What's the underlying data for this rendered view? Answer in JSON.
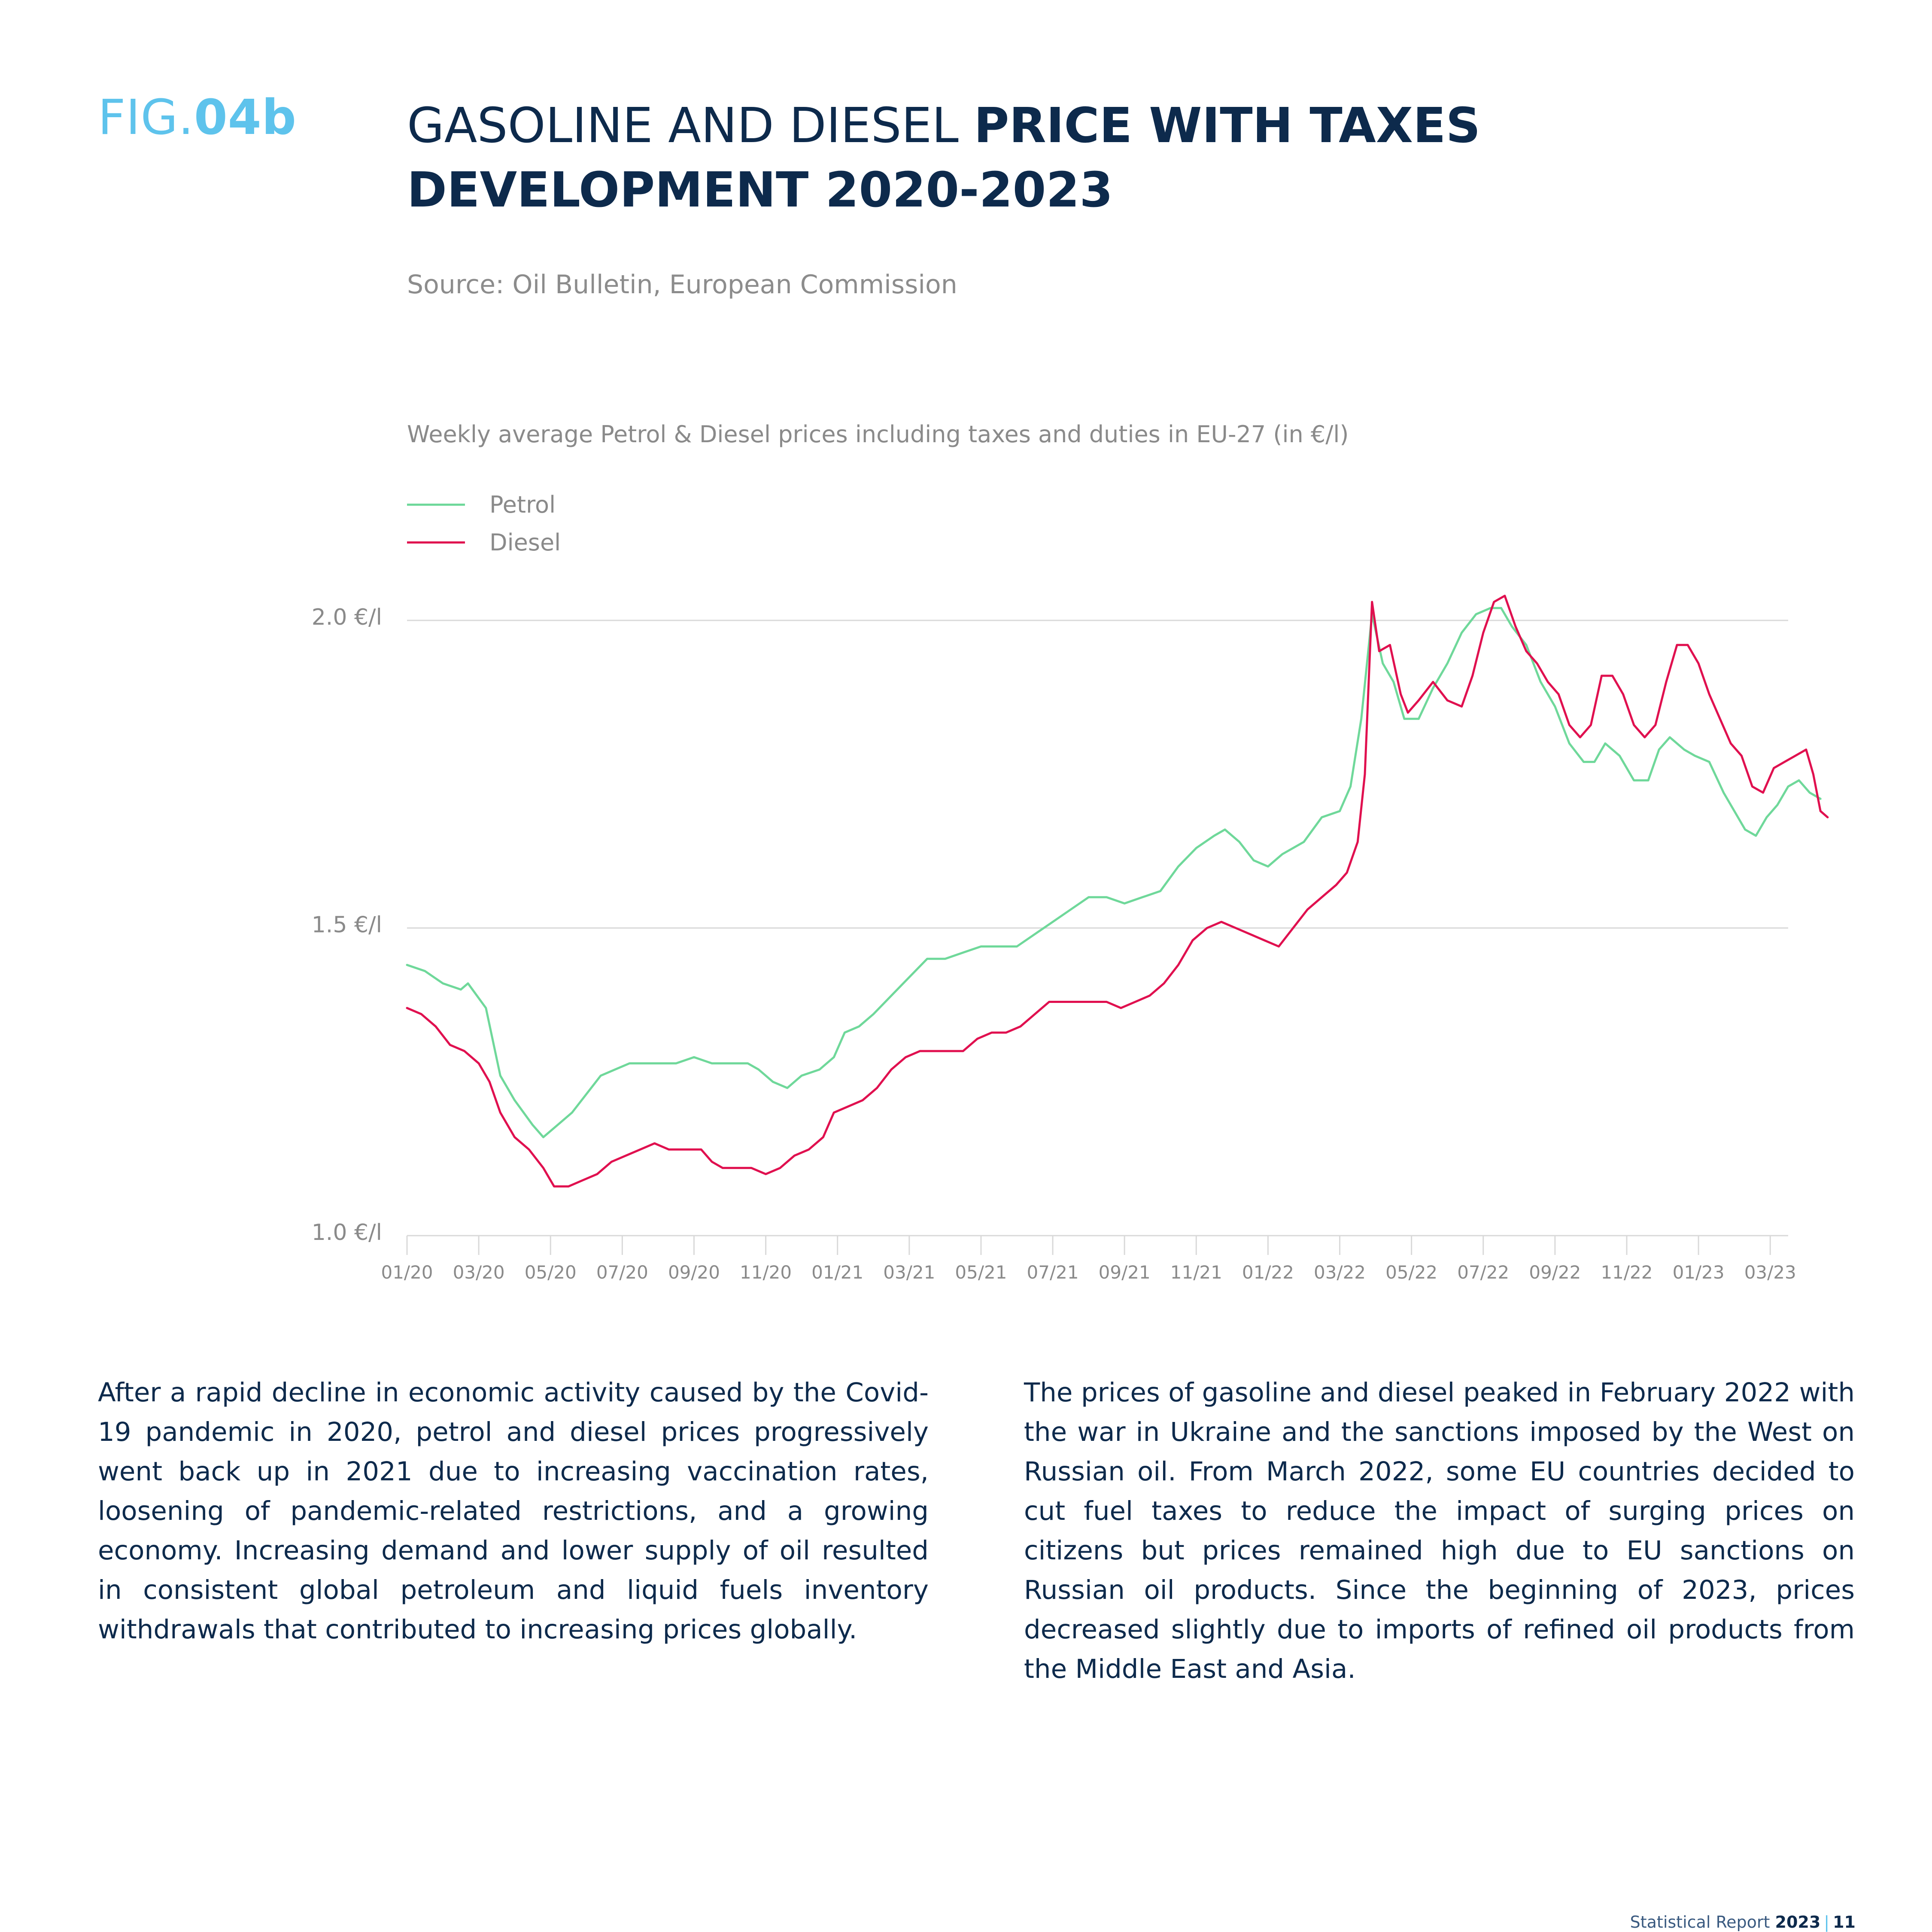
{
  "figure": {
    "prefix": "FIG.",
    "number": "04b"
  },
  "title": {
    "part_light": "GASOLINE AND DIESEL ",
    "part_bold_1": "PRICE WITH TAXES",
    "part_bold_2": "DEVELOPMENT 2020-2023"
  },
  "source": "Source: Oil Bulletin, European Commission",
  "colors": {
    "petrol": "#6fd89a",
    "diesel": "#e0104f",
    "grid": "#d9d9d9",
    "axis_text": "#8a8a8a"
  },
  "chart_data": {
    "type": "line",
    "title": "Weekly average Petrol & Diesel prices including taxes and duties in EU-27 (in €/l)",
    "ylim": [
      1.0,
      2.0
    ],
    "yticks": [
      1.0,
      1.5,
      2.0
    ],
    "ytick_labels": [
      "1.0 €/l",
      "1.5 €/l",
      "2.0 €/l"
    ],
    "xlim": [
      0,
      38.5
    ],
    "xticks": [
      0,
      2,
      4,
      6,
      8,
      10,
      12,
      14,
      16,
      18,
      20,
      22,
      24,
      26,
      28,
      30,
      32,
      34,
      36,
      38
    ],
    "xtick_labels": [
      "01/20",
      "03/20",
      "05/20",
      "07/20",
      "09/20",
      "11/20",
      "01/21",
      "03/21",
      "05/21",
      "07/21",
      "09/21",
      "11/21",
      "01/22",
      "03/22",
      "05/22",
      "07/22",
      "09/22",
      "11/22",
      "01/23",
      "03/23"
    ],
    "grid": true,
    "legend_position": "top-left",
    "series": [
      {
        "name": "Petrol",
        "points": [
          [
            0,
            1.44
          ],
          [
            0.5,
            1.43
          ],
          [
            1,
            1.41
          ],
          [
            1.5,
            1.4
          ],
          [
            1.7,
            1.41
          ],
          [
            2.2,
            1.37
          ],
          [
            2.6,
            1.26
          ],
          [
            3,
            1.22
          ],
          [
            3.5,
            1.18
          ],
          [
            3.8,
            1.16
          ],
          [
            4.2,
            1.18
          ],
          [
            4.6,
            1.2
          ],
          [
            5,
            1.23
          ],
          [
            5.4,
            1.26
          ],
          [
            5.8,
            1.27
          ],
          [
            6.2,
            1.28
          ],
          [
            6.5,
            1.28
          ],
          [
            7,
            1.28
          ],
          [
            7.5,
            1.28
          ],
          [
            8,
            1.29
          ],
          [
            8.5,
            1.28
          ],
          [
            9,
            1.28
          ],
          [
            9.5,
            1.28
          ],
          [
            9.8,
            1.27
          ],
          [
            10.2,
            1.25
          ],
          [
            10.6,
            1.24
          ],
          [
            11,
            1.26
          ],
          [
            11.5,
            1.27
          ],
          [
            11.9,
            1.29
          ],
          [
            12.2,
            1.33
          ],
          [
            12.6,
            1.34
          ],
          [
            13,
            1.36
          ],
          [
            13.5,
            1.39
          ],
          [
            14,
            1.42
          ],
          [
            14.5,
            1.45
          ],
          [
            15,
            1.45
          ],
          [
            15.5,
            1.46
          ],
          [
            16,
            1.47
          ],
          [
            16.5,
            1.47
          ],
          [
            17,
            1.47
          ],
          [
            17.5,
            1.49
          ],
          [
            18,
            1.51
          ],
          [
            18.5,
            1.53
          ],
          [
            19,
            1.55
          ],
          [
            19.5,
            1.55
          ],
          [
            20,
            1.54
          ],
          [
            20.5,
            1.55
          ],
          [
            21,
            1.56
          ],
          [
            21.5,
            1.6
          ],
          [
            22,
            1.63
          ],
          [
            22.5,
            1.65
          ],
          [
            22.8,
            1.66
          ],
          [
            23.2,
            1.64
          ],
          [
            23.6,
            1.61
          ],
          [
            24,
            1.6
          ],
          [
            24.4,
            1.62
          ],
          [
            25,
            1.64
          ],
          [
            25.5,
            1.68
          ],
          [
            26,
            1.69
          ],
          [
            26.3,
            1.73
          ],
          [
            26.6,
            1.84
          ],
          [
            26.9,
            2.01
          ],
          [
            27.2,
            1.93
          ],
          [
            27.5,
            1.9
          ],
          [
            27.8,
            1.84
          ],
          [
            28.2,
            1.84
          ],
          [
            28.6,
            1.89
          ],
          [
            29,
            1.93
          ],
          [
            29.4,
            1.98
          ],
          [
            29.8,
            2.01
          ],
          [
            30.2,
            2.02
          ],
          [
            30.5,
            2.02
          ],
          [
            30.8,
            1.99
          ],
          [
            31.2,
            1.96
          ],
          [
            31.6,
            1.9
          ],
          [
            32,
            1.86
          ],
          [
            32.4,
            1.8
          ],
          [
            32.8,
            1.77
          ],
          [
            33.1,
            1.77
          ],
          [
            33.4,
            1.8
          ],
          [
            33.8,
            1.78
          ],
          [
            34.2,
            1.74
          ],
          [
            34.6,
            1.74
          ],
          [
            34.9,
            1.79
          ],
          [
            35.2,
            1.81
          ],
          [
            35.6,
            1.79
          ],
          [
            35.9,
            1.78
          ],
          [
            36.3,
            1.77
          ],
          [
            36.7,
            1.72
          ],
          [
            37,
            1.69
          ],
          [
            37.3,
            1.66
          ],
          [
            37.6,
            1.65
          ],
          [
            37.9,
            1.68
          ],
          [
            38.2,
            1.7
          ],
          [
            38.5,
            1.73
          ],
          [
            38.8,
            1.74
          ],
          [
            39.1,
            1.72
          ],
          [
            39.4,
            1.71
          ]
        ]
      },
      {
        "name": "Diesel",
        "points": [
          [
            0,
            1.37
          ],
          [
            0.4,
            1.36
          ],
          [
            0.8,
            1.34
          ],
          [
            1.2,
            1.31
          ],
          [
            1.6,
            1.3
          ],
          [
            2,
            1.28
          ],
          [
            2.3,
            1.25
          ],
          [
            2.6,
            1.2
          ],
          [
            3,
            1.16
          ],
          [
            3.4,
            1.14
          ],
          [
            3.8,
            1.11
          ],
          [
            4.1,
            1.08
          ],
          [
            4.5,
            1.08
          ],
          [
            4.9,
            1.09
          ],
          [
            5.3,
            1.1
          ],
          [
            5.7,
            1.12
          ],
          [
            6.1,
            1.13
          ],
          [
            6.5,
            1.14
          ],
          [
            6.9,
            1.15
          ],
          [
            7.3,
            1.14
          ],
          [
            7.8,
            1.14
          ],
          [
            8.2,
            1.14
          ],
          [
            8.5,
            1.12
          ],
          [
            8.8,
            1.11
          ],
          [
            9.2,
            1.11
          ],
          [
            9.6,
            1.11
          ],
          [
            10,
            1.1
          ],
          [
            10.4,
            1.11
          ],
          [
            10.8,
            1.13
          ],
          [
            11.2,
            1.14
          ],
          [
            11.6,
            1.16
          ],
          [
            11.9,
            1.2
          ],
          [
            12.3,
            1.21
          ],
          [
            12.7,
            1.22
          ],
          [
            13.1,
            1.24
          ],
          [
            13.5,
            1.27
          ],
          [
            13.9,
            1.29
          ],
          [
            14.3,
            1.3
          ],
          [
            14.7,
            1.3
          ],
          [
            15.1,
            1.3
          ],
          [
            15.5,
            1.3
          ],
          [
            15.9,
            1.32
          ],
          [
            16.3,
            1.33
          ],
          [
            16.7,
            1.33
          ],
          [
            17.1,
            1.34
          ],
          [
            17.5,
            1.36
          ],
          [
            17.9,
            1.38
          ],
          [
            18.3,
            1.38
          ],
          [
            18.7,
            1.38
          ],
          [
            19.1,
            1.38
          ],
          [
            19.5,
            1.38
          ],
          [
            19.9,
            1.37
          ],
          [
            20.3,
            1.38
          ],
          [
            20.7,
            1.39
          ],
          [
            21.1,
            1.41
          ],
          [
            21.5,
            1.44
          ],
          [
            21.9,
            1.48
          ],
          [
            22.3,
            1.5
          ],
          [
            22.7,
            1.51
          ],
          [
            23.1,
            1.5
          ],
          [
            23.5,
            1.49
          ],
          [
            23.9,
            1.48
          ],
          [
            24.3,
            1.47
          ],
          [
            24.7,
            1.5
          ],
          [
            25.1,
            1.53
          ],
          [
            25.5,
            1.55
          ],
          [
            25.9,
            1.57
          ],
          [
            26.2,
            1.59
          ],
          [
            26.5,
            1.64
          ],
          [
            26.7,
            1.75
          ],
          [
            26.9,
            2.03
          ],
          [
            27.1,
            1.95
          ],
          [
            27.4,
            1.96
          ],
          [
            27.7,
            1.88
          ],
          [
            27.9,
            1.85
          ],
          [
            28.2,
            1.87
          ],
          [
            28.6,
            1.9
          ],
          [
            29,
            1.87
          ],
          [
            29.4,
            1.86
          ],
          [
            29.7,
            1.91
          ],
          [
            30,
            1.98
          ],
          [
            30.3,
            2.03
          ],
          [
            30.6,
            2.04
          ],
          [
            30.9,
            1.99
          ],
          [
            31.2,
            1.95
          ],
          [
            31.5,
            1.93
          ],
          [
            31.8,
            1.9
          ],
          [
            32.1,
            1.88
          ],
          [
            32.4,
            1.83
          ],
          [
            32.7,
            1.81
          ],
          [
            33,
            1.83
          ],
          [
            33.3,
            1.91
          ],
          [
            33.6,
            1.91
          ],
          [
            33.9,
            1.88
          ],
          [
            34.2,
            1.83
          ],
          [
            34.5,
            1.81
          ],
          [
            34.8,
            1.83
          ],
          [
            35.1,
            1.9
          ],
          [
            35.4,
            1.96
          ],
          [
            35.7,
            1.96
          ],
          [
            36,
            1.93
          ],
          [
            36.3,
            1.88
          ],
          [
            36.6,
            1.84
          ],
          [
            36.9,
            1.8
          ],
          [
            37.2,
            1.78
          ],
          [
            37.5,
            1.73
          ],
          [
            37.8,
            1.72
          ],
          [
            38.1,
            1.76
          ],
          [
            38.4,
            1.77
          ],
          [
            38.7,
            1.78
          ],
          [
            39,
            1.79
          ],
          [
            39.2,
            1.75
          ],
          [
            39.4,
            1.69
          ],
          [
            39.6,
            1.68
          ]
        ]
      }
    ]
  },
  "body": {
    "left": "After a rapid decline in economic activity caused by the Covid-19 pandemic in 2020, petrol and diesel prices progressively went back up in 2021 due to increasing vaccination rates, loosening of pandemic-related restrictions, and a growing economy. Increasing demand and lower supply of oil resulted in consistent global petroleum and liquid fuels inventory withdrawals that contributed to increasing prices globally.",
    "right": "The prices of gasoline and diesel peaked in February 2022 with the war in Ukraine and the sanctions imposed by the West on Russian oil. From March 2022, some EU countries decided to cut fuel taxes to reduce the impact of surging prices on citizens but prices remained high due to EU sanctions on Russian oil products. Since the beginning of 2023, prices decreased slightly due to imports of refined oil products from the Middle East and Asia."
  },
  "footer": {
    "text": "Statistical Report",
    "year": "2023",
    "separator": "|",
    "page": "11"
  }
}
